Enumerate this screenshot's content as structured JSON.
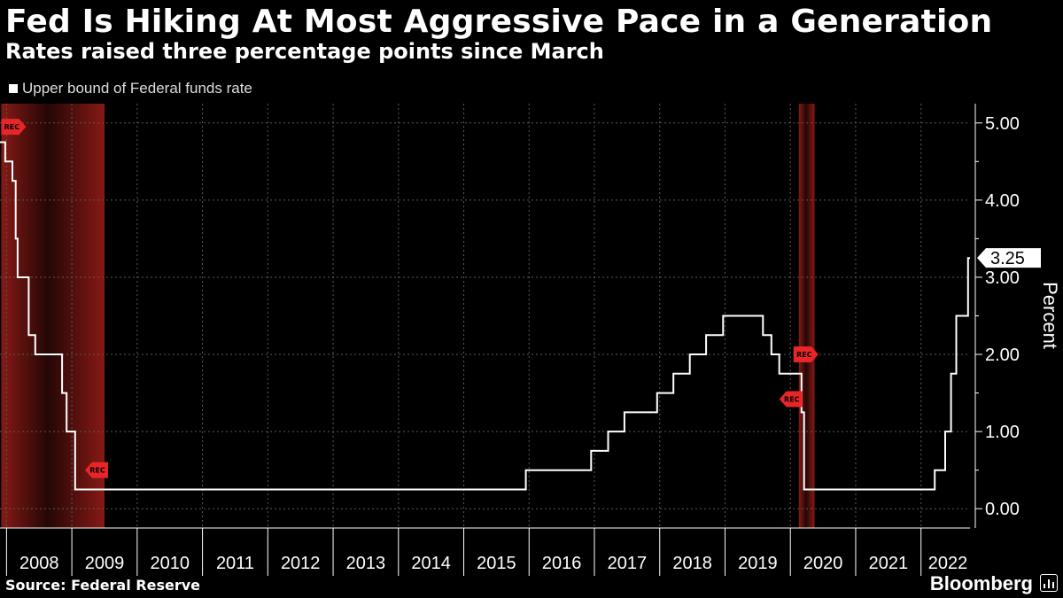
{
  "header": {
    "title": "Fed Is Hiking At Most Aggressive Pace in a Generation",
    "subtitle": "Rates raised three percentage points since March"
  },
  "legend": {
    "label": "Upper bound of Federal funds rate"
  },
  "footer": {
    "source": "Source: Federal Reserve",
    "brand": "Bloomberg"
  },
  "colors": {
    "background": "#000000",
    "line": "#ffffff",
    "recession": "#b3221c",
    "marker": "#e8262a",
    "grid": "#5a5a5a"
  },
  "chart_data": {
    "type": "line",
    "title": "Fed Is Hiking At Most Aggressive Pace in a Generation",
    "subtitle": "Rates raised three percentage points since March",
    "xlabel": "",
    "ylabel": "Percent",
    "ylim": [
      -0.25,
      5.25
    ],
    "xlim": [
      2007.9,
      2022.75
    ],
    "grid": true,
    "y_axis_side": "right",
    "y_ticks": [
      {
        "value": 0,
        "label": "0.00"
      },
      {
        "value": 1,
        "label": "1.00"
      },
      {
        "value": 2,
        "label": "2.00"
      },
      {
        "value": 3,
        "label": "3.00"
      },
      {
        "value": 4,
        "label": "4.00"
      },
      {
        "value": 5,
        "label": "5.00"
      }
    ],
    "x_ticks": [
      "2008",
      "2009",
      "2010",
      "2011",
      "2012",
      "2013",
      "2014",
      "2015",
      "2016",
      "2017",
      "2018",
      "2019",
      "2020",
      "2021",
      "2022"
    ],
    "recessions": [
      {
        "start": 2007.92,
        "end": 2009.5,
        "label": "REC"
      },
      {
        "start": 2020.13,
        "end": 2020.37,
        "label": "REC"
      }
    ],
    "rec_markers": [
      {
        "x": 2008.0,
        "y": 4.95,
        "label": "REC",
        "dir": "right"
      },
      {
        "x": 2009.5,
        "y": 0.5,
        "label": "REC",
        "dir": "left"
      },
      {
        "x": 2020.13,
        "y": 2.0,
        "label": "REC",
        "dir": "right"
      },
      {
        "x": 2020.13,
        "y": 1.42,
        "label": "REC",
        "dir": "left"
      }
    ],
    "series": [
      {
        "name": "Upper bound of Federal funds rate",
        "step": true,
        "points": [
          [
            2007.9,
            4.75
          ],
          [
            2007.98,
            4.5
          ],
          [
            2008.09,
            4.25
          ],
          [
            2008.14,
            3.5
          ],
          [
            2008.17,
            3.0
          ],
          [
            2008.34,
            2.25
          ],
          [
            2008.44,
            2.0
          ],
          [
            2008.85,
            1.5
          ],
          [
            2008.92,
            1.0
          ],
          [
            2009.05,
            0.25
          ],
          [
            2015.95,
            0.5
          ],
          [
            2016.95,
            0.75
          ],
          [
            2017.21,
            1.0
          ],
          [
            2017.46,
            1.25
          ],
          [
            2017.96,
            1.5
          ],
          [
            2018.21,
            1.75
          ],
          [
            2018.46,
            2.0
          ],
          [
            2018.71,
            2.25
          ],
          [
            2018.97,
            2.5
          ],
          [
            2019.58,
            2.25
          ],
          [
            2019.71,
            2.0
          ],
          [
            2019.83,
            1.75
          ],
          [
            2020.17,
            1.25
          ],
          [
            2020.21,
            0.25
          ],
          [
            2022.21,
            0.5
          ],
          [
            2022.37,
            1.0
          ],
          [
            2022.46,
            1.75
          ],
          [
            2022.54,
            2.5
          ],
          [
            2022.72,
            3.25
          ],
          [
            2022.75,
            3.25
          ]
        ]
      }
    ],
    "callout": {
      "value": 3.25,
      "label": "3.25"
    }
  }
}
